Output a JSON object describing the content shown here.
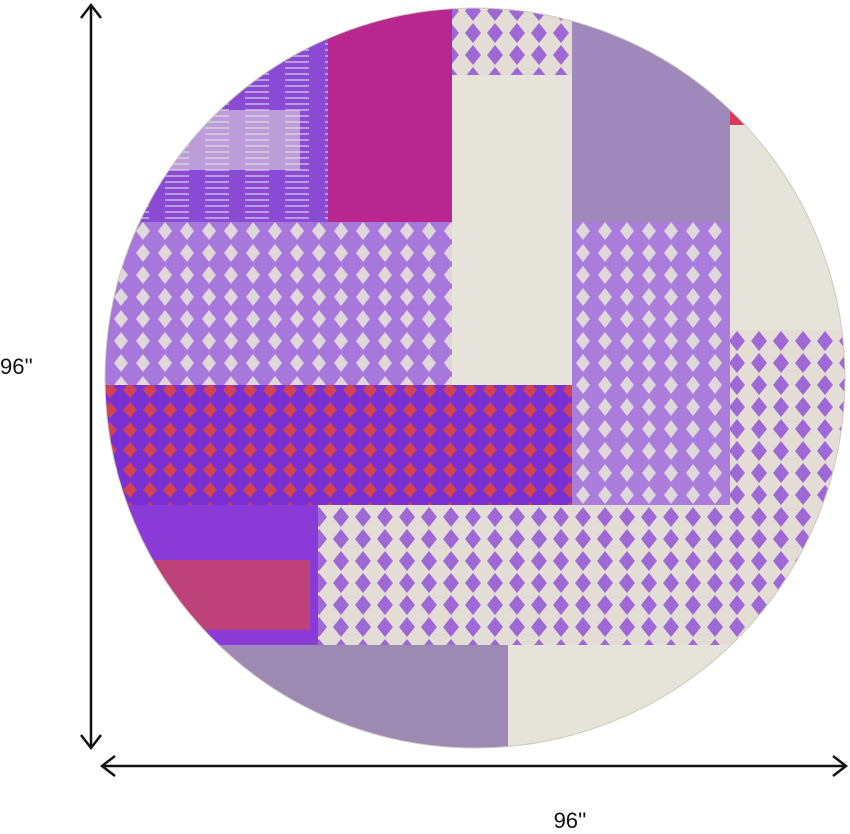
{
  "dimensions": {
    "height": "96''",
    "width": "96''"
  }
}
